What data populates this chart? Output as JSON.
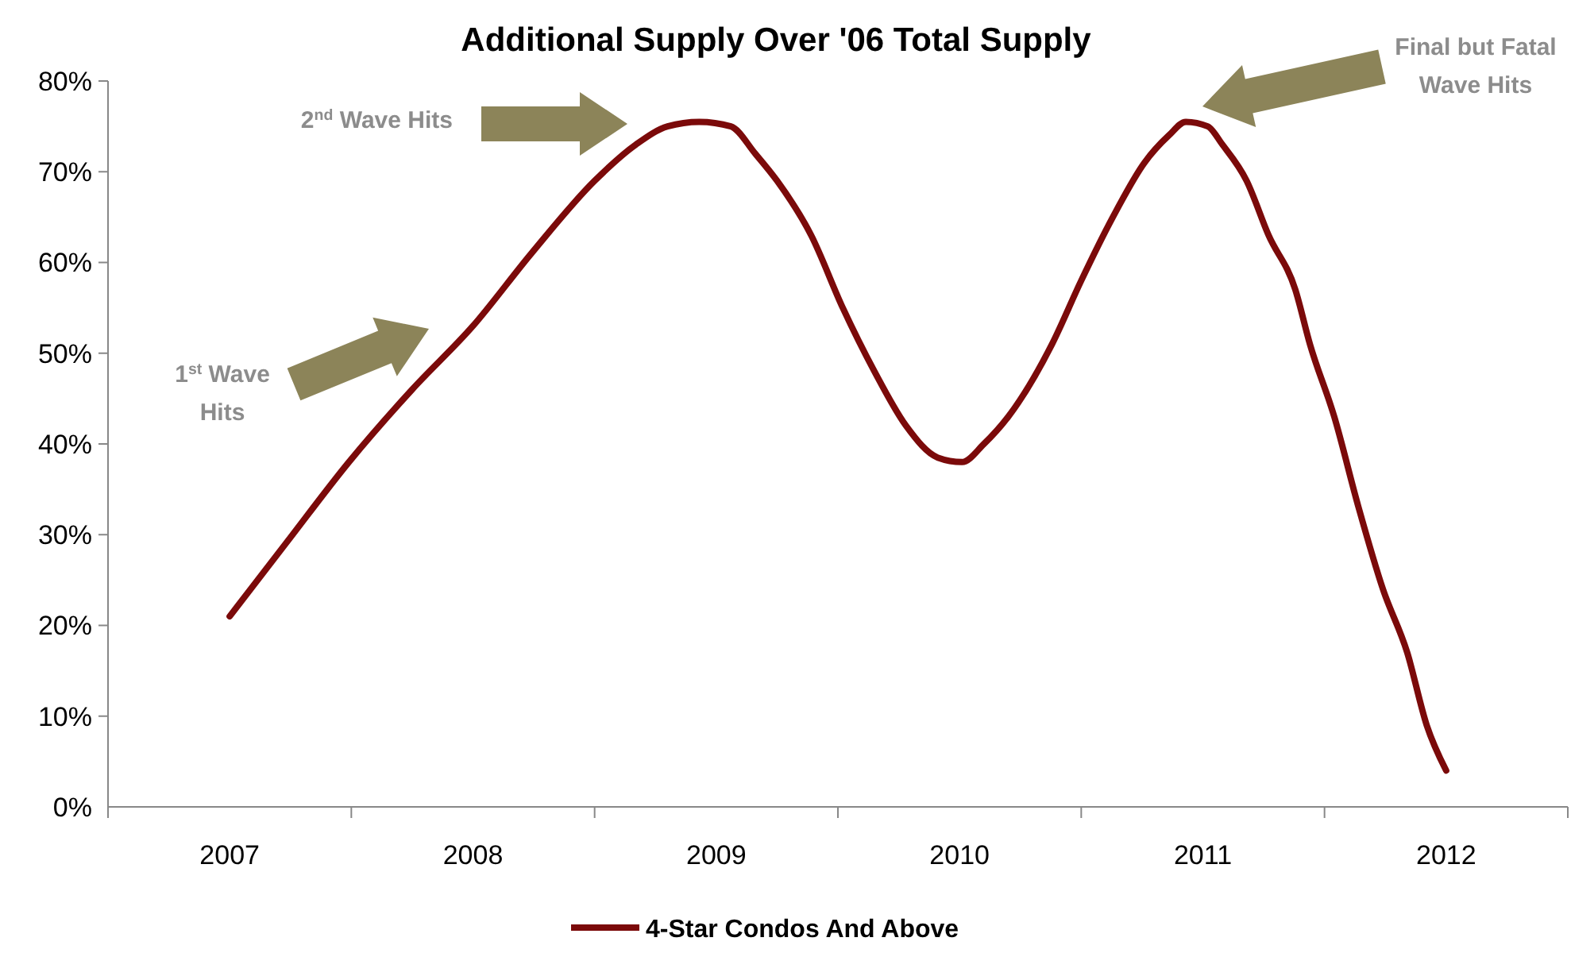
{
  "chart_data": {
    "type": "line",
    "title": "Additional Supply Over '06 Total Supply",
    "x": [
      2007.0,
      2007.23,
      2007.49,
      2007.75,
      2008.0,
      2008.24,
      2008.5,
      2008.67,
      2008.8,
      2008.93,
      2009.06,
      2009.16,
      2009.25,
      2009.39,
      2009.52,
      2009.65,
      2009.78,
      2009.91,
      2010.01,
      2010.1,
      2010.2,
      2010.38,
      2010.5,
      2010.63,
      2010.76,
      2010.86,
      2010.93,
      2011.02,
      2011.08,
      2011.18,
      2011.27,
      2011.38,
      2011.44,
      2011.54,
      2011.64,
      2011.74,
      2011.84,
      2011.92,
      2012.0
    ],
    "series": [
      {
        "name": "4-Star Condos And Above",
        "color": "#7b0a0a",
        "values": [
          21,
          29,
          38,
          46,
          53,
          61,
          69,
          73,
          75,
          75.5,
          75,
          72,
          69,
          63,
          55,
          48,
          42,
          38.5,
          38,
          40,
          43,
          51,
          58,
          65,
          71,
          74,
          75.5,
          75,
          73,
          69,
          63,
          57,
          51,
          43,
          33,
          24,
          17,
          9,
          4
        ]
      }
    ],
    "xlim": [
      2006.5,
      2012.5
    ],
    "xticks": [
      2007,
      2008,
      2009,
      2010,
      2011,
      2012
    ],
    "ylim": [
      0,
      80
    ],
    "yticks": [
      {
        "value": 0,
        "label": "0%"
      },
      {
        "value": 10,
        "label": "10%"
      },
      {
        "value": 20,
        "label": "20%"
      },
      {
        "value": 30,
        "label": "30%"
      },
      {
        "value": 40,
        "label": "40%"
      },
      {
        "value": 50,
        "label": "50%"
      },
      {
        "value": 60,
        "label": "60%"
      },
      {
        "value": 70,
        "label": "70%"
      },
      {
        "value": 80,
        "label": "80%"
      }
    ],
    "grid": false,
    "legend": "bottom",
    "marker": "none",
    "line_style": "solid",
    "annotations": [
      "1$^{st}$ Wave\nHits",
      "2$^{nd}$ Wave Hits",
      "Final but Fatal\nWave Hits"
    ]
  }
}
